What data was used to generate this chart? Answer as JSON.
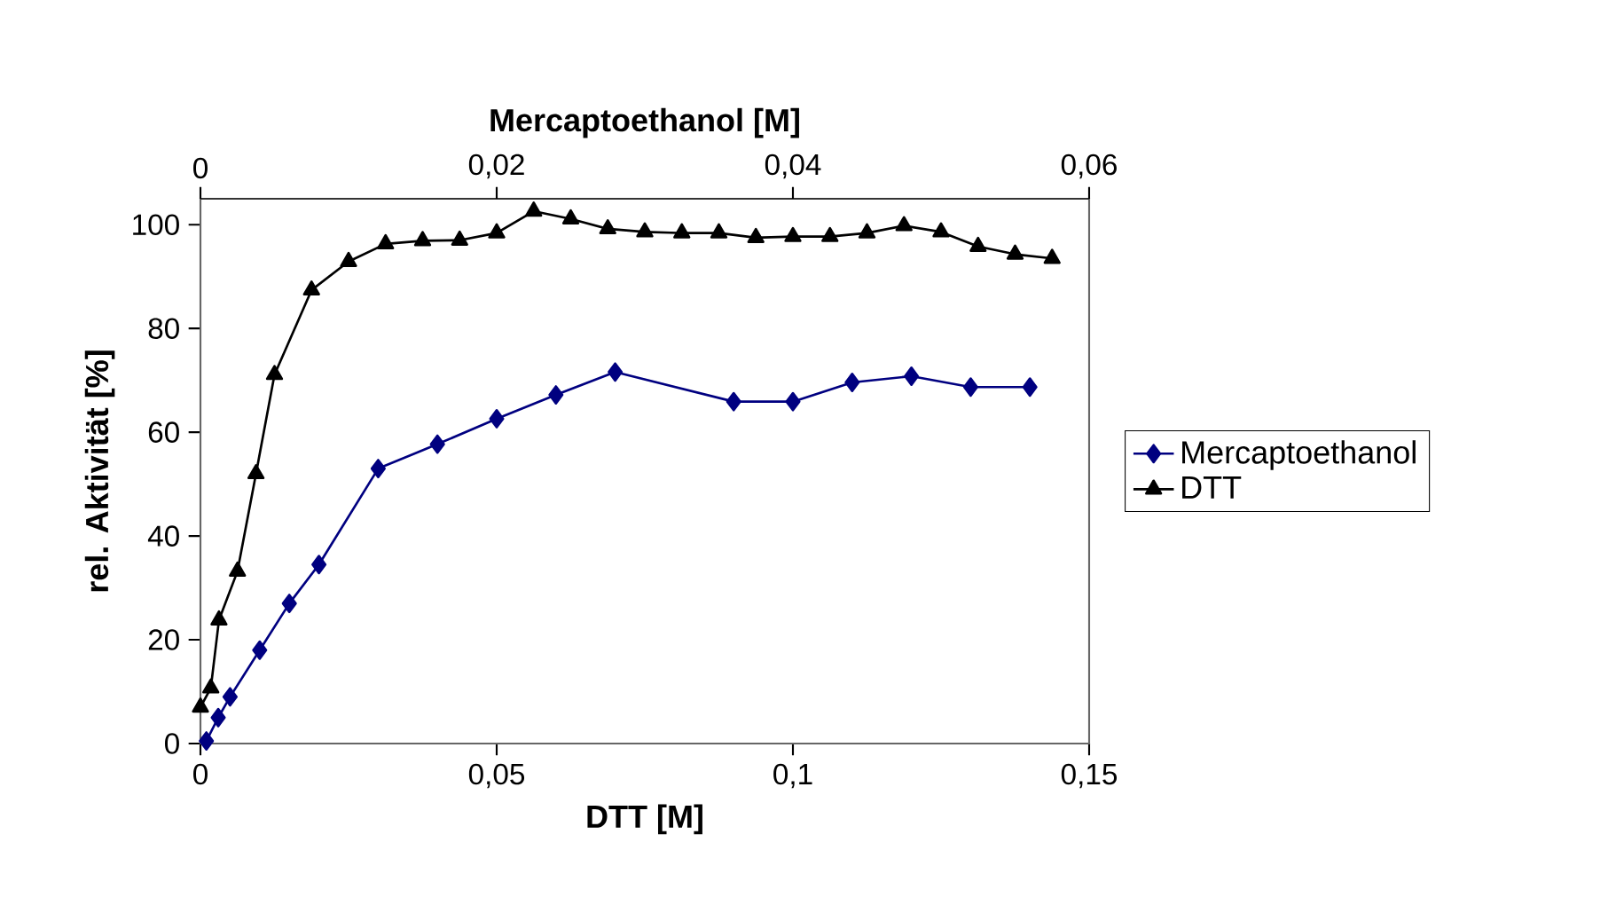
{
  "chart_data": {
    "type": "line",
    "xlabel": "DTT [M]",
    "x2label": "Mercaptoethanol [M]",
    "ylabel": "rel. Aktivität [%]",
    "xlim": [
      0,
      0.15
    ],
    "xticks": [
      0,
      {
        "value": 0.05,
        "label": "0,05"
      },
      {
        "value": 0.1,
        "label": "0,1"
      },
      {
        "value": 0.15,
        "label": "0,15"
      }
    ],
    "x2lim": [
      0,
      0.06
    ],
    "x2ticks": [
      0,
      {
        "value": 0.02,
        "label": "0,02"
      },
      {
        "value": 0.04,
        "label": "0,04"
      },
      {
        "value": 0.06,
        "label": "0,06"
      }
    ],
    "ylim": [
      0,
      105
    ],
    "yticks": [
      0,
      20,
      40,
      60,
      80,
      100
    ],
    "grid": false,
    "legend": "right",
    "line_style": "solid",
    "series": [
      {
        "name": "Mercaptoethanol",
        "color": "#000080",
        "marker": "diamond",
        "x": [
          0.001,
          0.003,
          0.005,
          0.01,
          0.015,
          0.02,
          0.03,
          0.04,
          0.05,
          0.06,
          0.07,
          0.09,
          0.1,
          0.11,
          0.12,
          0.13,
          0.14
        ],
        "values": [
          0.5,
          5,
          9,
          18,
          27,
          34.5,
          53,
          57.7,
          62.6,
          67.2,
          71.6,
          65.9,
          65.9,
          69.6,
          70.8,
          68.7,
          68.7
        ]
      },
      {
        "name": "DTT",
        "color": "#000000",
        "marker": "triangle",
        "axis": "x2",
        "x": [
          0,
          0.0007,
          0.00125,
          0.0025,
          0.00375,
          0.005,
          0.0075,
          0.01,
          0.0125,
          0.015,
          0.0175,
          0.02,
          0.0225,
          0.025,
          0.0275,
          0.03,
          0.0325,
          0.035,
          0.0375,
          0.04,
          0.0425,
          0.045,
          0.0475,
          0.05,
          0.0525,
          0.055,
          0.0575
        ],
        "values": [
          7,
          10.7,
          23.8,
          33.2,
          52,
          71.1,
          87.4,
          92.9,
          96.3,
          96.9,
          97,
          98.4,
          102.6,
          101.1,
          99.2,
          98.6,
          98.4,
          98.4,
          97.5,
          97.7,
          97.7,
          98.4,
          99.8,
          98.6,
          95.8,
          94.3,
          93.5
        ]
      }
    ]
  }
}
